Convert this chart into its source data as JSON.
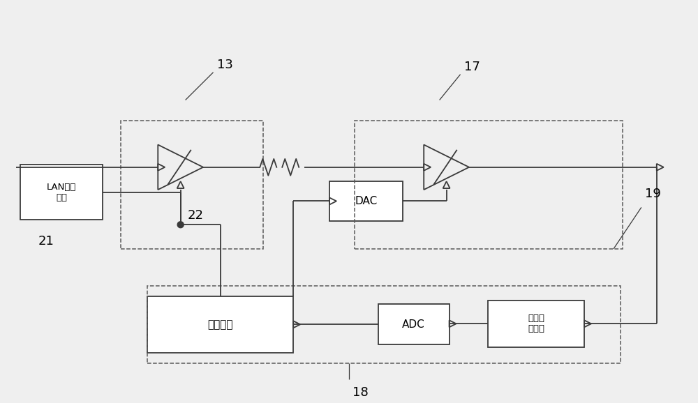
{
  "bg_color": "#efefef",
  "line_color": "#3a3a3a",
  "box_color": "#ffffff",
  "dashed_color": "#5a5a5a",
  "labels": {
    "lan": "LAN供电\n电源",
    "dac": "DAC",
    "adc": "ADC",
    "control": "控制模块",
    "power": "功率检\n测模块"
  },
  "numbers": {
    "n13": "13",
    "n17": "17",
    "n18": "18",
    "n19": "19",
    "n21": "21",
    "n22": "22"
  }
}
